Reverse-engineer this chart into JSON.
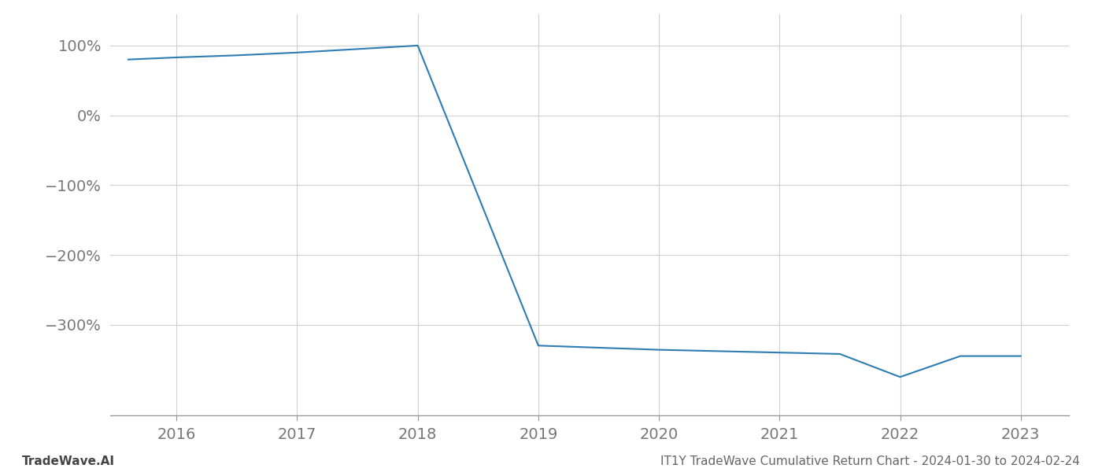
{
  "title": "IT1Y TradeWave Cumulative Return Chart - 2024-01-30 to 2024-02-24",
  "watermark": "TradeWave.AI",
  "line_color": "#2d7db3",
  "background_color": "#ffffff",
  "grid_color": "#d0d0d0",
  "x_values": [
    2015.6,
    2016.0,
    2016.5,
    2017.0,
    2017.5,
    2018.0,
    2019.0,
    2019.5,
    2020.0,
    2020.5,
    2021.0,
    2021.5,
    2022.0,
    2022.5,
    2023.0
  ],
  "y_values": [
    80,
    83,
    86,
    90,
    95,
    100,
    -330,
    -333,
    -336,
    -338,
    -340,
    -342,
    -375,
    -345,
    -345
  ],
  "xlim": [
    2015.45,
    2023.4
  ],
  "ylim": [
    -430,
    145
  ],
  "yticks": [
    100,
    0,
    -100,
    -200,
    -300
  ],
  "ytick_labels": [
    "100%",
    "0%",
    "−100%",
    "−200%",
    "−300%"
  ],
  "xticks": [
    2016,
    2017,
    2018,
    2019,
    2020,
    2021,
    2022,
    2023
  ],
  "line_width": 1.5,
  "tick_fontsize": 14,
  "footer_fontsize": 11
}
